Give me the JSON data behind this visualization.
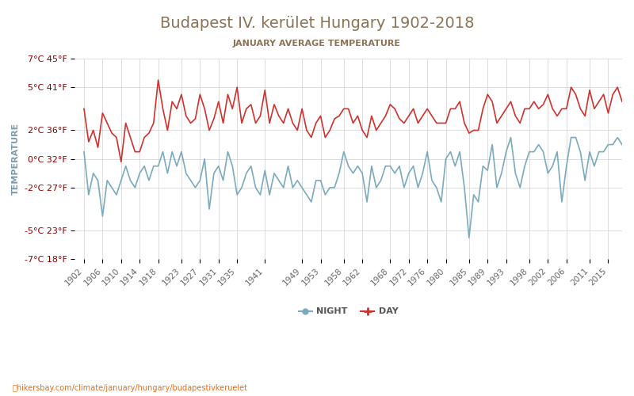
{
  "title": "Budapest IV. kerület Hungary 1902-2018",
  "subtitle": "JANUARY AVERAGE TEMPERATURE",
  "ylabel": "TEMPERATURE",
  "url_text": "hikersbay.com/climate/january/hungary/budapestivkeruelet",
  "title_color": "#8B7355",
  "subtitle_color": "#8B7355",
  "ylabel_color": "#7B9BAA",
  "url_color": "#E87020",
  "background_color": "#ffffff",
  "grid_color": "#d0d0d0",
  "day_color": "#d0312d",
  "night_color": "#7BAABE",
  "ylim_celsius": [
    -7,
    7
  ],
  "yticks_celsius": [
    -7,
    -5,
    -2,
    0,
    2,
    5,
    7
  ],
  "yticks_fahrenheit": [
    18,
    23,
    27,
    32,
    36,
    41,
    45
  ],
  "x_years": [
    1902,
    1906,
    1910,
    1914,
    1918,
    1923,
    1927,
    1931,
    1935,
    1941,
    1949,
    1953,
    1958,
    1962,
    1968,
    1972,
    1976,
    1980,
    1985,
    1989,
    1993,
    1998,
    2002,
    2006,
    2011,
    2015
  ],
  "years": [
    1902,
    1903,
    1904,
    1905,
    1906,
    1907,
    1908,
    1909,
    1910,
    1911,
    1912,
    1913,
    1914,
    1915,
    1916,
    1917,
    1918,
    1919,
    1920,
    1921,
    1922,
    1923,
    1924,
    1925,
    1926,
    1927,
    1928,
    1929,
    1930,
    1931,
    1932,
    1933,
    1934,
    1935,
    1936,
    1937,
    1938,
    1939,
    1940,
    1941,
    1942,
    1943,
    1944,
    1945,
    1946,
    1947,
    1948,
    1949,
    1950,
    1951,
    1952,
    1953,
    1954,
    1955,
    1956,
    1957,
    1958,
    1959,
    1960,
    1961,
    1962,
    1963,
    1964,
    1965,
    1966,
    1967,
    1968,
    1969,
    1970,
    1971,
    1972,
    1973,
    1974,
    1975,
    1976,
    1977,
    1978,
    1979,
    1980,
    1981,
    1982,
    1983,
    1984,
    1985,
    1986,
    1987,
    1988,
    1989,
    1990,
    1991,
    1992,
    1993,
    1994,
    1995,
    1996,
    1997,
    1998,
    1999,
    2000,
    2001,
    2002,
    2003,
    2004,
    2005,
    2006,
    2007,
    2008,
    2009,
    2010,
    2011,
    2012,
    2013,
    2014,
    2015,
    2016,
    2017,
    2018
  ],
  "day_data": [
    3.5,
    1.2,
    2.0,
    0.8,
    3.2,
    2.5,
    1.8,
    1.5,
    -0.2,
    2.5,
    1.5,
    0.5,
    0.5,
    1.5,
    1.8,
    2.5,
    5.5,
    3.5,
    2.0,
    4.0,
    3.5,
    4.5,
    3.0,
    2.5,
    2.8,
    4.5,
    3.5,
    2.0,
    2.8,
    4.0,
    2.5,
    4.5,
    3.5,
    5.0,
    2.5,
    3.5,
    3.8,
    2.5,
    3.0,
    4.8,
    2.5,
    3.8,
    3.0,
    2.5,
    3.5,
    2.5,
    2.0,
    3.5,
    2.0,
    1.5,
    2.5,
    3.0,
    1.5,
    2.0,
    2.8,
    3.0,
    3.5,
    3.5,
    2.5,
    3.0,
    2.0,
    1.5,
    3.0,
    2.0,
    2.5,
    3.0,
    3.8,
    3.5,
    2.8,
    2.5,
    3.0,
    3.5,
    2.5,
    3.0,
    3.5,
    3.0,
    2.5,
    2.5,
    2.5,
    3.5,
    3.5,
    4.0,
    2.5,
    1.8,
    2.0,
    2.0,
    3.5,
    4.5,
    4.0,
    2.5,
    3.0,
    3.5,
    4.0,
    3.0,
    2.5,
    3.5,
    3.5,
    4.0,
    3.5,
    3.8,
    4.5,
    3.5,
    3.0,
    3.5,
    3.5,
    5.0,
    4.5,
    3.5,
    3.0,
    4.8,
    3.5,
    4.0,
    4.5,
    3.2,
    4.5,
    5.0,
    4.0
  ],
  "night_data": [
    0.5,
    -2.5,
    -1.0,
    -1.5,
    -4.0,
    -1.5,
    -2.0,
    -2.5,
    -1.5,
    -0.5,
    -1.5,
    -2.0,
    -1.0,
    -0.5,
    -1.5,
    -0.5,
    -0.5,
    0.5,
    -1.0,
    0.5,
    -0.5,
    0.5,
    -1.0,
    -1.5,
    -2.0,
    -1.5,
    0.0,
    -3.5,
    -1.0,
    -0.5,
    -1.5,
    0.5,
    -0.5,
    -2.5,
    -2.0,
    -1.0,
    -0.5,
    -2.0,
    -2.5,
    -0.8,
    -2.5,
    -1.0,
    -1.5,
    -2.0,
    -0.5,
    -2.0,
    -1.5,
    -2.0,
    -2.5,
    -3.0,
    -1.5,
    -1.5,
    -2.5,
    -2.0,
    -2.0,
    -1.0,
    0.5,
    -0.5,
    -1.0,
    -0.5,
    -1.0,
    -3.0,
    -0.5,
    -2.0,
    -1.5,
    -0.5,
    -0.5,
    -1.0,
    -0.5,
    -2.0,
    -1.0,
    -0.5,
    -2.0,
    -1.0,
    0.5,
    -1.5,
    -2.0,
    -3.0,
    0.0,
    0.5,
    -0.5,
    0.5,
    -2.0,
    -5.5,
    -2.5,
    -3.0,
    -0.5,
    -0.8,
    1.0,
    -2.0,
    -1.0,
    0.5,
    1.5,
    -1.0,
    -2.0,
    -0.5,
    0.5,
    0.5,
    1.0,
    0.5,
    -1.0,
    -0.5,
    0.5,
    -3.0,
    -0.5,
    1.5,
    1.5,
    0.5,
    -1.5,
    0.5,
    -0.5,
    0.5,
    0.5,
    1.0,
    1.0,
    1.5,
    1.0
  ]
}
